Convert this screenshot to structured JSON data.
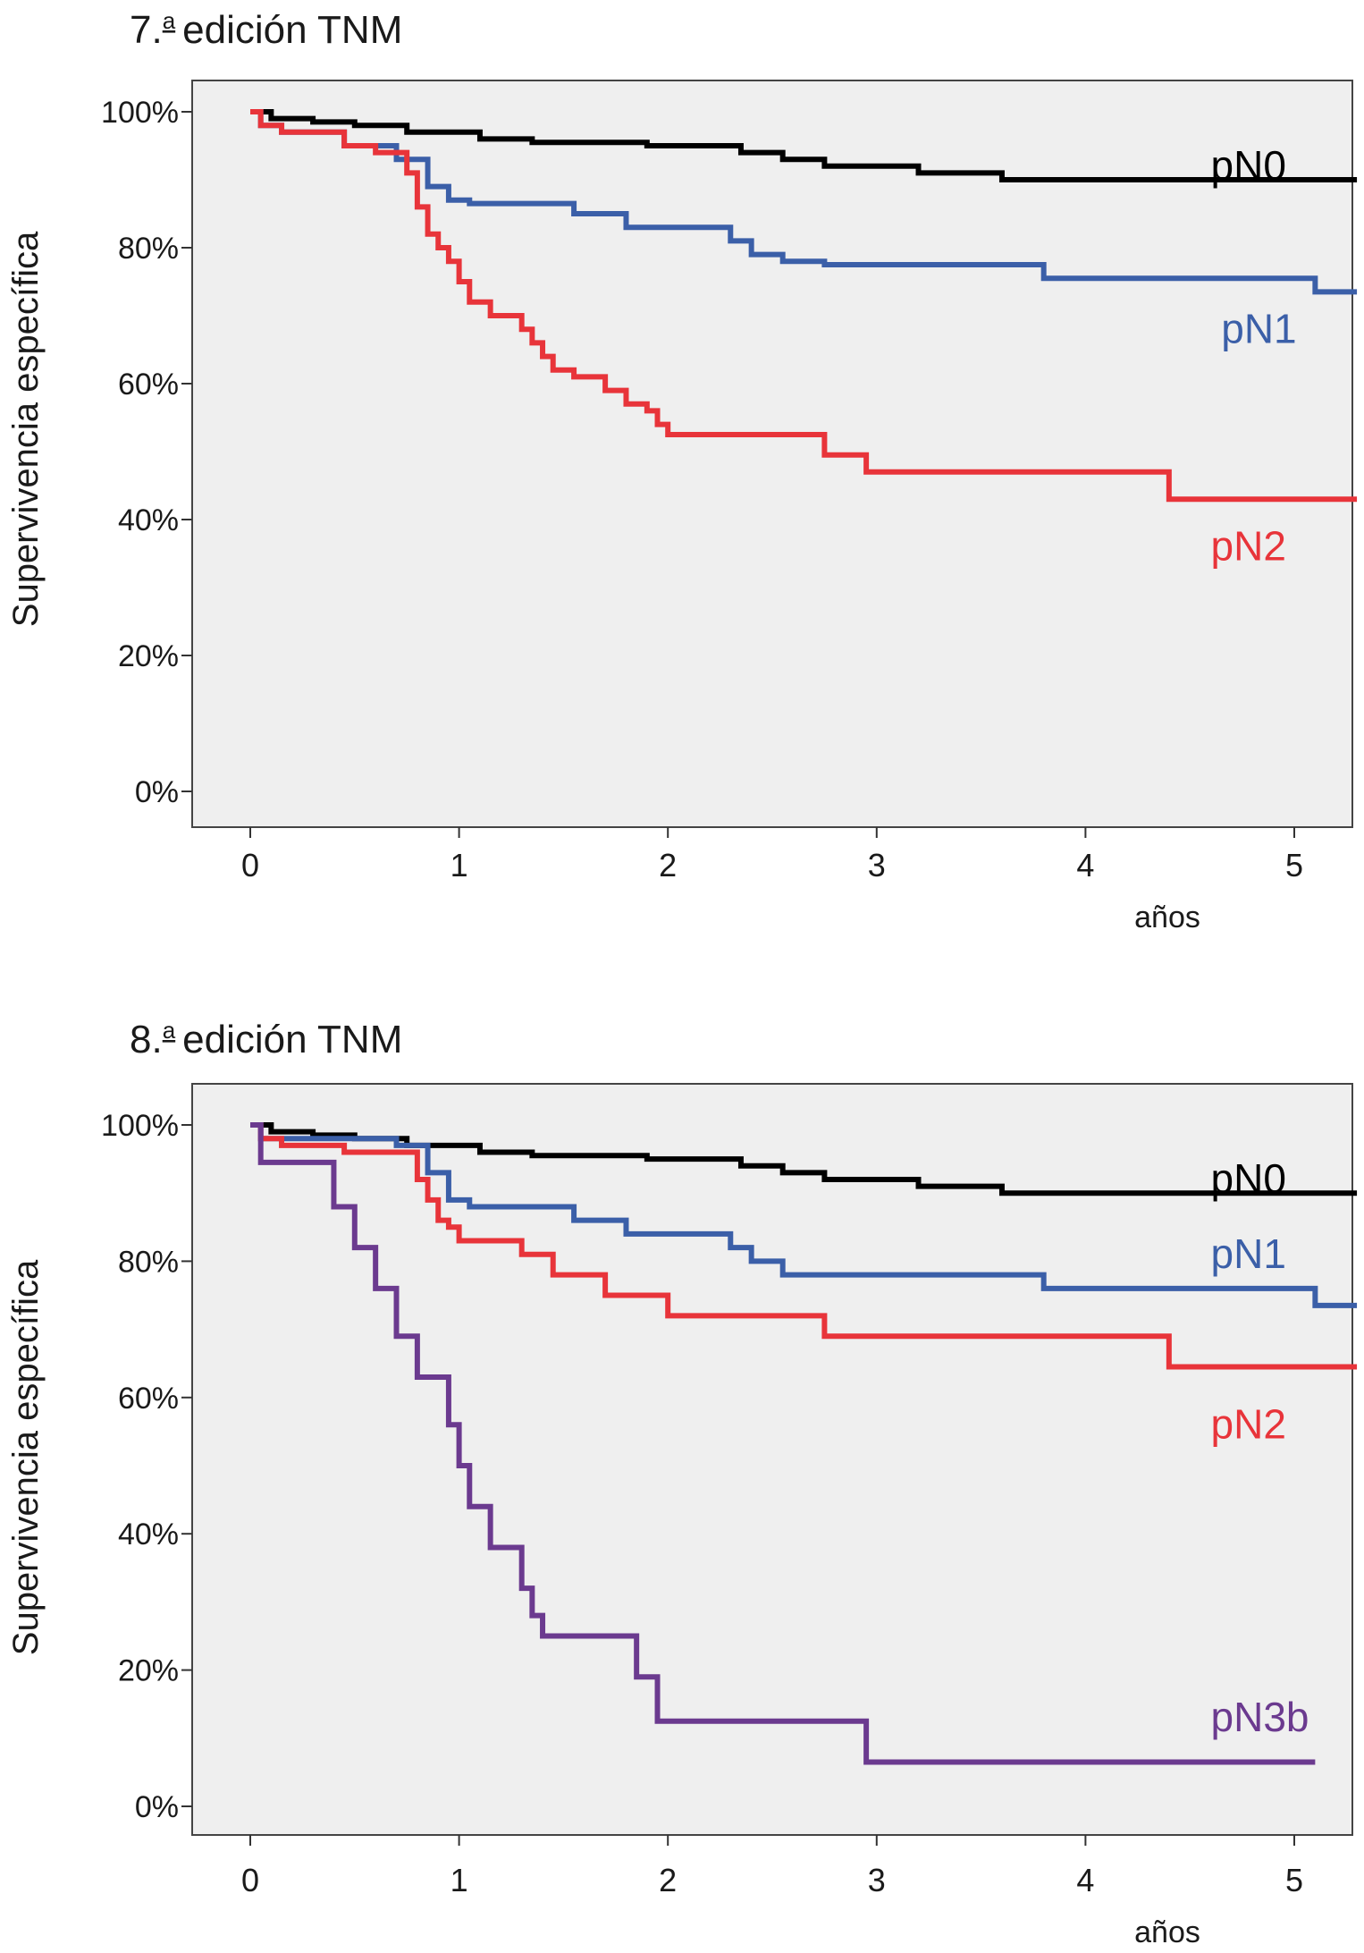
{
  "chart_data": [
    {
      "type": "line",
      "title_prefix": "7.",
      "title_sup": "a",
      "title_main": "edición TNM",
      "ylabel": "Supervivencia específica",
      "xlabel": "años",
      "xticks": [
        "0",
        "1",
        "2",
        "3",
        "4",
        "5"
      ],
      "yticks": [
        "0%",
        "20%",
        "40%",
        "60%",
        "80%",
        "100%"
      ],
      "xlim": [
        -0.3,
        5.3
      ],
      "ylim": [
        -6,
        106
      ],
      "grid": false,
      "series": [
        {
          "name": "pN0",
          "color": "#000000",
          "x": [
            0,
            0.1,
            0.3,
            0.5,
            0.75,
            1.1,
            1.35,
            1.9,
            2.35,
            2.55,
            2.75,
            3.2,
            3.6,
            5.3
          ],
          "y": [
            100,
            99,
            98.5,
            98,
            97,
            96,
            95.5,
            95,
            94,
            93,
            92,
            91,
            90,
            90
          ]
        },
        {
          "name": "pN1",
          "color": "#3b5fa8",
          "x": [
            0,
            0.05,
            0.15,
            0.45,
            0.7,
            0.85,
            0.95,
            1.05,
            1.55,
            1.8,
            2.3,
            2.4,
            2.55,
            2.75,
            3.1,
            3.8,
            5.1,
            5.3
          ],
          "y": [
            100,
            98,
            97,
            95,
            93,
            89,
            87,
            86.5,
            85,
            83,
            81,
            79,
            78,
            77.5,
            77.5,
            75.5,
            73.5,
            73.5
          ],
          "line_end": 5.3
        },
        {
          "name": "pN2",
          "color": "#e8343a",
          "x": [
            0,
            0.05,
            0.15,
            0.45,
            0.6,
            0.75,
            0.8,
            0.85,
            0.9,
            0.95,
            1.0,
            1.05,
            1.15,
            1.3,
            1.35,
            1.4,
            1.45,
            1.55,
            1.7,
            1.8,
            1.9,
            1.95,
            2.0,
            2.75,
            2.95,
            4.4,
            5.3
          ],
          "y": [
            100,
            98,
            97,
            95,
            94,
            91,
            86,
            82,
            80,
            78,
            75,
            72,
            70,
            68,
            66,
            64,
            62,
            61,
            59,
            57,
            56,
            54,
            52.5,
            49.5,
            47,
            43,
            43
          ]
        }
      ],
      "labels": [
        {
          "text": "pN0",
          "series": "pN0",
          "x": 4.6,
          "y": 90
        },
        {
          "text": "pN1",
          "series": "pN1",
          "x": 4.65,
          "y": 66
        },
        {
          "text": "pN2",
          "series": "pN2",
          "x": 4.6,
          "y": 34
        }
      ]
    },
    {
      "type": "line",
      "title_prefix": "8.",
      "title_sup": "a",
      "title_main": "edición TNM",
      "ylabel": "Supervivencia específica",
      "xlabel": "años",
      "xticks": [
        "0",
        "1",
        "2",
        "3",
        "4",
        "5"
      ],
      "yticks": [
        "0%",
        "20%",
        "40%",
        "60%",
        "80%",
        "100%"
      ],
      "xlim": [
        -0.3,
        5.3
      ],
      "ylim": [
        -6,
        106
      ],
      "grid": false,
      "series": [
        {
          "name": "pN0",
          "color": "#000000",
          "x": [
            0,
            0.1,
            0.3,
            0.5,
            0.75,
            1.1,
            1.35,
            1.9,
            2.35,
            2.55,
            2.75,
            3.2,
            3.6,
            5.3
          ],
          "y": [
            100,
            99,
            98.5,
            98,
            97,
            96,
            95.5,
            95,
            94,
            93,
            92,
            91,
            90,
            90
          ]
        },
        {
          "name": "pN1",
          "color": "#3b5fa8",
          "x": [
            0,
            0.05,
            0.7,
            0.85,
            0.95,
            1.05,
            1.55,
            1.8,
            2.3,
            2.4,
            2.55,
            2.75,
            3.1,
            3.8,
            5.1,
            5.3
          ],
          "y": [
            100,
            98,
            97,
            93,
            89,
            88,
            86,
            84,
            82,
            80,
            78,
            78,
            78,
            76,
            73.5,
            73.5
          ]
        },
        {
          "name": "pN2",
          "color": "#e8343a",
          "x": [
            0,
            0.05,
            0.15,
            0.45,
            0.8,
            0.85,
            0.9,
            0.95,
            1.0,
            1.3,
            1.45,
            1.7,
            2.0,
            2.75,
            4.4,
            5.3
          ],
          "y": [
            100,
            98,
            97,
            96,
            92,
            89,
            86,
            85,
            83,
            81,
            78,
            75,
            72,
            69,
            64.5,
            64.5
          ]
        },
        {
          "name": "pN3b",
          "color": "#6b3a8f",
          "x": [
            0,
            0.05,
            0.4,
            0.5,
            0.6,
            0.7,
            0.8,
            0.9,
            0.95,
            1.0,
            1.05,
            1.15,
            1.3,
            1.35,
            1.4,
            1.85,
            1.95,
            2.0,
            2.95,
            5.1
          ],
          "y": [
            100,
            94.5,
            88,
            82,
            76,
            69,
            63,
            63,
            56,
            50,
            44,
            38,
            32,
            28,
            25,
            19,
            12.5,
            12.5,
            6.5,
            6.5
          ]
        }
      ],
      "labels": [
        {
          "text": "pN0",
          "series": "pN0",
          "x": 4.6,
          "y": 90
        },
        {
          "text": "pN1",
          "series": "pN1",
          "x": 4.6,
          "y": 79
        },
        {
          "text": "pN2",
          "series": "pN2",
          "x": 4.6,
          "y": 54
        },
        {
          "text": "pN3b",
          "series": "pN3b",
          "x": 4.6,
          "y": 11
        }
      ]
    }
  ]
}
